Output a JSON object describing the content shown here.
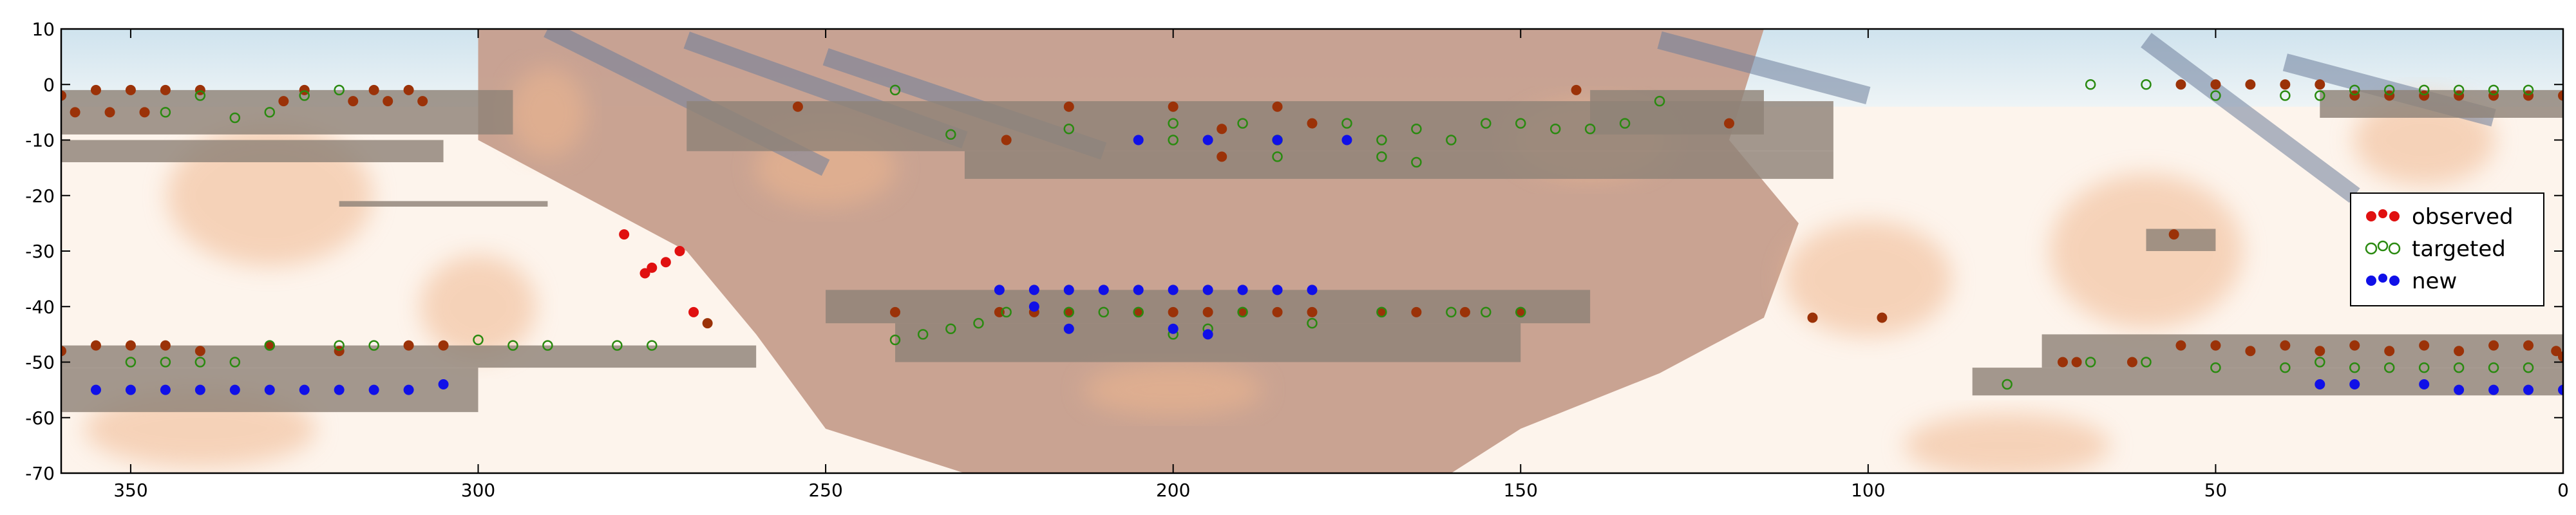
{
  "chart_data": {
    "type": "scatter",
    "title": "",
    "xlabel": "",
    "ylabel": "",
    "xlim": [
      360,
      0
    ],
    "ylim": [
      -70,
      10
    ],
    "x_ticks": [
      {
        "value": 350,
        "label": "350"
      },
      {
        "value": 300,
        "label": "300"
      },
      {
        "value": 250,
        "label": "250"
      },
      {
        "value": 200,
        "label": "200"
      },
      {
        "value": 150,
        "label": "150"
      },
      {
        "value": 100,
        "label": "100"
      },
      {
        "value": 50,
        "label": "50"
      },
      {
        "value": 0,
        "label": "0"
      }
    ],
    "y_ticks": [
      {
        "value": 10,
        "label": "10"
      },
      {
        "value": 0,
        "label": "0"
      },
      {
        "value": -10,
        "label": "-10"
      },
      {
        "value": -20,
        "label": "-20"
      },
      {
        "value": -30,
        "label": "-30"
      },
      {
        "value": -40,
        "label": "-40"
      },
      {
        "value": -50,
        "label": "-50"
      },
      {
        "value": -60,
        "label": "-60"
      },
      {
        "value": -70,
        "label": "-70"
      }
    ],
    "grid": false,
    "legend_position": "right",
    "background": {
      "survey_strips": [
        {
          "x0": 360,
          "x1": 295,
          "y0": -1,
          "y1": -9
        },
        {
          "x0": 360,
          "x1": 305,
          "y0": -10,
          "y1": -14
        },
        {
          "x0": 270,
          "x1": 105,
          "y0": -3,
          "y1": -12
        },
        {
          "x0": 230,
          "x1": 105,
          "y0": -12,
          "y1": -17
        },
        {
          "x0": 320,
          "x1": 290,
          "y0": -21,
          "y1": -22
        },
        {
          "x0": 250,
          "x1": 140,
          "y0": -37,
          "y1": -43
        },
        {
          "x0": 240,
          "x1": 150,
          "y0": -43,
          "y1": -50
        },
        {
          "x0": 360,
          "x1": 260,
          "y0": -47,
          "y1": -51
        },
        {
          "x0": 360,
          "x1": 300,
          "y0": -51,
          "y1": -59
        },
        {
          "x0": 75,
          "x1": 0,
          "y0": -45,
          "y1": -51
        },
        {
          "x0": 85,
          "x1": 0,
          "y0": -51,
          "y1": -56
        },
        {
          "x0": 60,
          "x1": 50,
          "y0": -26,
          "y1": -30
        },
        {
          "x0": 140,
          "x1": 115,
          "y0": -1,
          "y1": -9
        },
        {
          "x0": 35,
          "x1": 0,
          "y0": -1,
          "y1": -6
        }
      ],
      "colors": {
        "base": "#fdf4ec",
        "dust": "#c69e8d",
        "nebula": "#f0b78f",
        "sky": "#d7e8f2",
        "strip": "#8f8377",
        "stripe": "#6e7f9c",
        "frame": "#000000"
      }
    },
    "series": [
      {
        "name": "observed",
        "style": "filled",
        "color": "#e01010",
        "points": [
          [
            279,
            -27
          ],
          [
            276,
            -34
          ],
          [
            275,
            -33
          ],
          [
            273,
            -32
          ],
          [
            271,
            -30
          ],
          [
            269,
            -41
          ]
        ]
      },
      {
        "name": "observed",
        "style": "filled",
        "color": "#9b3208",
        "points": [
          [
            360,
            -2
          ],
          [
            355,
            -1
          ],
          [
            350,
            -1
          ],
          [
            345,
            -1
          ],
          [
            340,
            -1
          ],
          [
            325,
            -1
          ],
          [
            315,
            -1
          ],
          [
            310,
            -1
          ],
          [
            358,
            -5
          ],
          [
            353,
            -5
          ],
          [
            348,
            -5
          ],
          [
            328,
            -3
          ],
          [
            318,
            -3
          ],
          [
            313,
            -3
          ],
          [
            308,
            -3
          ],
          [
            254,
            -4
          ],
          [
            224,
            -10
          ],
          [
            215,
            -4
          ],
          [
            200,
            -4
          ],
          [
            193,
            -8
          ],
          [
            193,
            -13
          ],
          [
            185,
            -4
          ],
          [
            180,
            -7
          ],
          [
            142,
            -1
          ],
          [
            120,
            -7
          ],
          [
            360,
            -48
          ],
          [
            355,
            -47
          ],
          [
            350,
            -47
          ],
          [
            345,
            -47
          ],
          [
            340,
            -48
          ],
          [
            330,
            -47
          ],
          [
            320,
            -48
          ],
          [
            310,
            -47
          ],
          [
            305,
            -47
          ],
          [
            267,
            -43
          ],
          [
            240,
            -41
          ],
          [
            225,
            -41
          ],
          [
            220,
            -41
          ],
          [
            215,
            -41
          ],
          [
            205,
            -41
          ],
          [
            200,
            -41
          ],
          [
            195,
            -41
          ],
          [
            190,
            -41
          ],
          [
            185,
            -41
          ],
          [
            180,
            -41
          ],
          [
            170,
            -41
          ],
          [
            165,
            -41
          ],
          [
            158,
            -41
          ],
          [
            150,
            -41
          ],
          [
            56,
            -27
          ],
          [
            108,
            -42
          ],
          [
            98,
            -42
          ],
          [
            72,
            -50
          ],
          [
            70,
            -50
          ],
          [
            62,
            -50
          ],
          [
            55,
            -47
          ],
          [
            50,
            -47
          ],
          [
            45,
            -48
          ],
          [
            40,
            -47
          ],
          [
            35,
            -48
          ],
          [
            30,
            -47
          ],
          [
            25,
            -48
          ],
          [
            20,
            -47
          ],
          [
            15,
            -48
          ],
          [
            10,
            -47
          ],
          [
            5,
            -47
          ],
          [
            1,
            -48
          ],
          [
            0,
            -49
          ],
          [
            55,
            0
          ],
          [
            50,
            0
          ],
          [
            45,
            0
          ],
          [
            40,
            0
          ],
          [
            35,
            0
          ],
          [
            30,
            -2
          ],
          [
            25,
            -2
          ],
          [
            20,
            -2
          ],
          [
            15,
            -2
          ],
          [
            10,
            -2
          ],
          [
            5,
            -2
          ],
          [
            0,
            -2
          ]
        ]
      },
      {
        "name": "targeted",
        "style": "open",
        "color": "#2a8a10",
        "points": [
          [
            345,
            -5
          ],
          [
            340,
            -2
          ],
          [
            335,
            -6
          ],
          [
            330,
            -5
          ],
          [
            325,
            -2
          ],
          [
            320,
            -1
          ],
          [
            240,
            -1
          ],
          [
            232,
            -9
          ],
          [
            215,
            -8
          ],
          [
            200,
            -7
          ],
          [
            190,
            -7
          ],
          [
            185,
            -10
          ],
          [
            175,
            -7
          ],
          [
            170,
            -10
          ],
          [
            165,
            -8
          ],
          [
            160,
            -10
          ],
          [
            155,
            -7
          ],
          [
            150,
            -7
          ],
          [
            145,
            -8
          ],
          [
            140,
            -8
          ],
          [
            135,
            -7
          ],
          [
            130,
            -3
          ],
          [
            200,
            -10
          ],
          [
            185,
            -13
          ],
          [
            170,
            -13
          ],
          [
            165,
            -14
          ],
          [
            350,
            -50
          ],
          [
            345,
            -50
          ],
          [
            340,
            -50
          ],
          [
            335,
            -50
          ],
          [
            330,
            -47
          ],
          [
            320,
            -47
          ],
          [
            315,
            -47
          ],
          [
            300,
            -46
          ],
          [
            295,
            -47
          ],
          [
            290,
            -47
          ],
          [
            280,
            -47
          ],
          [
            275,
            -47
          ],
          [
            240,
            -46
          ],
          [
            236,
            -45
          ],
          [
            232,
            -44
          ],
          [
            228,
            -43
          ],
          [
            224,
            -41
          ],
          [
            215,
            -41
          ],
          [
            210,
            -41
          ],
          [
            205,
            -41
          ],
          [
            200,
            -45
          ],
          [
            195,
            -44
          ],
          [
            190,
            -41
          ],
          [
            180,
            -43
          ],
          [
            170,
            -41
          ],
          [
            160,
            -41
          ],
          [
            155,
            -41
          ],
          [
            150,
            -41
          ],
          [
            80,
            -54
          ],
          [
            68,
            -50
          ],
          [
            60,
            -50
          ],
          [
            50,
            -51
          ],
          [
            40,
            -51
          ],
          [
            35,
            -50
          ],
          [
            30,
            -51
          ],
          [
            25,
            -51
          ],
          [
            20,
            -51
          ],
          [
            15,
            -51
          ],
          [
            10,
            -51
          ],
          [
            5,
            -51
          ],
          [
            68,
            0
          ],
          [
            60,
            0
          ],
          [
            50,
            -2
          ],
          [
            40,
            -2
          ],
          [
            35,
            -2
          ],
          [
            30,
            -1
          ],
          [
            25,
            -1
          ],
          [
            20,
            -1
          ],
          [
            15,
            -1
          ],
          [
            10,
            -1
          ],
          [
            5,
            -1
          ]
        ]
      },
      {
        "name": "new",
        "style": "filled",
        "color": "#1010e8",
        "points": [
          [
            355,
            -55
          ],
          [
            350,
            -55
          ],
          [
            345,
            -55
          ],
          [
            340,
            -55
          ],
          [
            335,
            -55
          ],
          [
            330,
            -55
          ],
          [
            325,
            -55
          ],
          [
            320,
            -55
          ],
          [
            315,
            -55
          ],
          [
            310,
            -55
          ],
          [
            305,
            -54
          ],
          [
            225,
            -37
          ],
          [
            220,
            -37
          ],
          [
            215,
            -37
          ],
          [
            210,
            -37
          ],
          [
            205,
            -37
          ],
          [
            200,
            -37
          ],
          [
            195,
            -37
          ],
          [
            190,
            -37
          ],
          [
            185,
            -37
          ],
          [
            180,
            -37
          ],
          [
            220,
            -40
          ],
          [
            215,
            -44
          ],
          [
            200,
            -44
          ],
          [
            195,
            -45
          ],
          [
            205,
            -10
          ],
          [
            195,
            -10
          ],
          [
            185,
            -10
          ],
          [
            175,
            -10
          ],
          [
            35,
            -54
          ],
          [
            30,
            -54
          ],
          [
            20,
            -54
          ],
          [
            15,
            -55
          ],
          [
            10,
            -55
          ],
          [
            5,
            -55
          ],
          [
            0,
            -55
          ]
        ]
      }
    ],
    "legend": [
      {
        "label": "observed",
        "style": "filled",
        "color": "#e01010"
      },
      {
        "label": "targeted",
        "style": "open",
        "color": "#2a8a10"
      },
      {
        "label": "new",
        "style": "filled",
        "color": "#1010e8"
      }
    ]
  }
}
